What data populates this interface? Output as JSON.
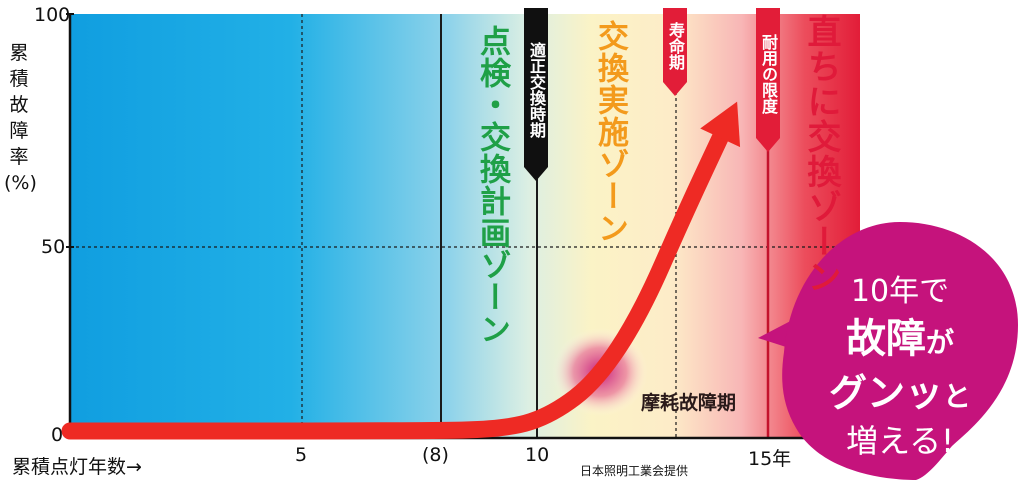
{
  "chart_data": {
    "type": "line",
    "ylabel": "累積故障率(%)",
    "xlabel": "累積点灯年数→",
    "y_ticks": [
      "100",
      "50",
      "0"
    ],
    "x_ticks": [
      "5",
      "(8)",
      "10",
      "15年"
    ],
    "xlim": [
      0,
      18
    ],
    "ylim": [
      0,
      100
    ],
    "series": [
      {
        "x": [
          0,
          8,
          10,
          11,
          12,
          13,
          14,
          15.2
        ],
        "values": [
          0,
          0,
          0.5,
          4,
          12,
          28,
          52,
          79
        ]
      }
    ],
    "markers": {
      "appropriate": "適正交換時期",
      "life": "寿命期",
      "limit": "耐用の限度"
    },
    "zones": {
      "inspect": "点検・交換計画ゾーン",
      "replace": "交換実施ゾーン",
      "immediate": "直ちに交換ゾーン"
    },
    "wearout_label": "摩耗故障期",
    "callout": {
      "line1": "10年で",
      "line2a": "故障",
      "line2b": "が",
      "line3a": "グンッ",
      "line3b": "と",
      "line4": "増える!"
    },
    "credit": "日本照明工業会提供",
    "colors": {
      "cyan": "#15a6e0",
      "cream": "#fbf3c6",
      "crimson": "#e21d38",
      "curve": "#ee2a24",
      "callout": "#c5137c",
      "zone_green": "#1fa047",
      "zone_orange": "#f39a1c"
    }
  }
}
